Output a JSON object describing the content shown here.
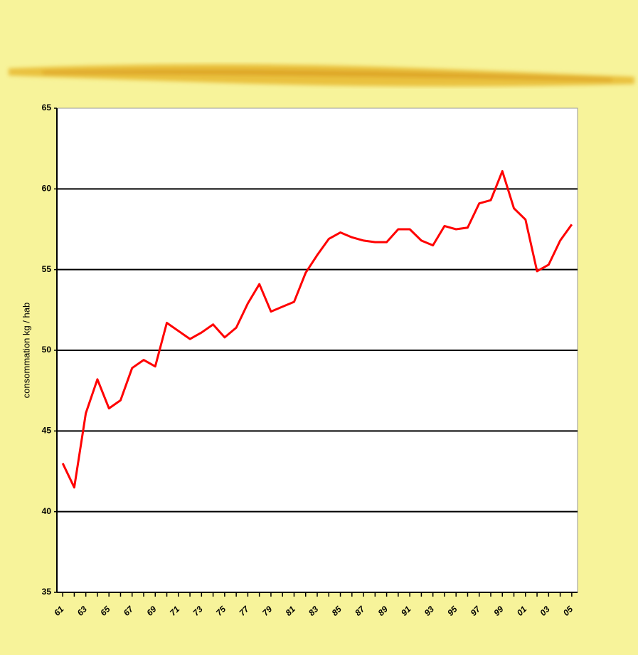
{
  "chart_data": {
    "type": "line",
    "y_label": "consommation kg / hab",
    "categories": [
      "61",
      null,
      "63",
      null,
      "65",
      null,
      "67",
      null,
      "69",
      null,
      "71",
      null,
      "73",
      null,
      "75",
      null,
      "77",
      null,
      "79",
      null,
      "81",
      null,
      "83",
      null,
      "85",
      null,
      "87",
      null,
      "89",
      null,
      "91",
      null,
      "93",
      null,
      "95",
      null,
      "97",
      null,
      "99",
      null,
      "01",
      null,
      "03",
      null,
      "05"
    ],
    "series": [
      {
        "color": "#ff0000",
        "values": [
          43.0,
          41.5,
          46.1,
          48.2,
          46.4,
          46.9,
          48.9,
          49.4,
          49.0,
          51.7,
          51.2,
          50.7,
          51.1,
          51.6,
          50.8,
          51.4,
          52.9,
          54.1,
          52.4,
          52.7,
          53.0,
          54.8,
          55.9,
          56.9,
          57.3,
          57.0,
          56.8,
          56.7,
          56.7,
          57.5,
          57.5,
          56.8,
          56.5,
          57.7,
          57.5,
          57.6,
          59.1,
          59.3,
          61.1,
          58.8,
          58.1,
          54.9,
          55.3,
          56.8,
          57.8
        ]
      }
    ],
    "ylim": [
      35,
      65
    ],
    "yticks": [
      35,
      40,
      45,
      50,
      55,
      60,
      65
    ],
    "grid": true
  }
}
